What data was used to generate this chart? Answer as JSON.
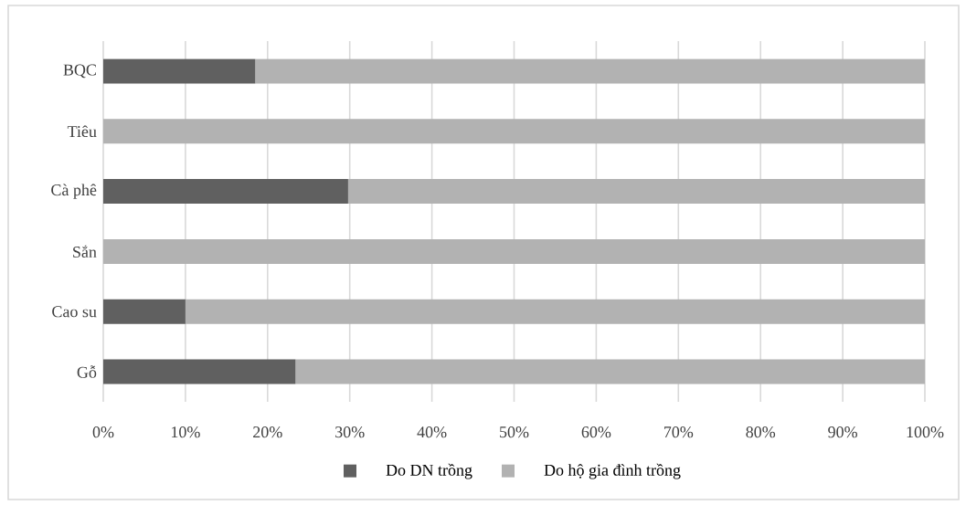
{
  "chart_data": {
    "type": "bar",
    "orientation": "horizontal",
    "stacked": true,
    "categories": [
      "BQC",
      "Tiêu",
      "Cà phê",
      "Sắn",
      "Cao su",
      "Gỗ"
    ],
    "series": [
      {
        "name": "Do DN trồng",
        "color": "#606060",
        "values": [
          18.5,
          0,
          29.8,
          0,
          10.0,
          23.4
        ]
      },
      {
        "name": "Do hộ gia đình trồng",
        "color": "#b2b2b2",
        "values": [
          81.5,
          100,
          70.2,
          100,
          90.0,
          76.6
        ]
      }
    ],
    "xlim": [
      0,
      100
    ],
    "xticks": [
      {
        "value": 0,
        "label": "0%"
      },
      {
        "value": 10,
        "label": "10%"
      },
      {
        "value": 20,
        "label": "20%"
      },
      {
        "value": 30,
        "label": "30%"
      },
      {
        "value": 40,
        "label": "40%"
      },
      {
        "value": 50,
        "label": "50%"
      },
      {
        "value": 60,
        "label": "60%"
      },
      {
        "value": 70,
        "label": "70%"
      },
      {
        "value": 80,
        "label": "80%"
      },
      {
        "value": 90,
        "label": "90%"
      },
      {
        "value": 100,
        "label": "100%"
      }
    ],
    "grid": "x",
    "legend": "bottom"
  }
}
